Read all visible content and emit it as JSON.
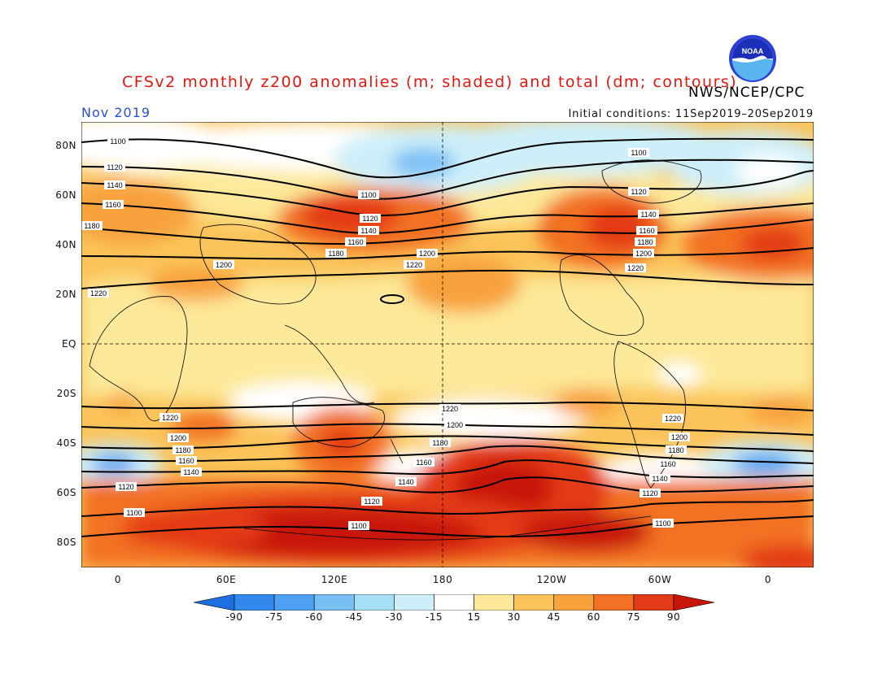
{
  "title": "CFSv2 monthly z200 anomalies (m; shaded) and total (dm; contours)",
  "org": "NWS/NCEP/CPC",
  "month": "Nov 2019",
  "initial_conditions": "Initial conditions: 11Sep2019–20Sep2019",
  "logo": {
    "text": "NOAA",
    "icon": "noaa-logo"
  },
  "lat_labels": [
    "80N",
    "60N",
    "40N",
    "20N",
    "EQ",
    "20S",
    "40S",
    "60S",
    "80S"
  ],
  "lon_labels": [
    "0",
    "60E",
    "120E",
    "180",
    "120W",
    "60W",
    "0"
  ],
  "colorbar": {
    "ticks": [
      "-90",
      "-75",
      "-60",
      "-45",
      "-30",
      "-15",
      "15",
      "30",
      "45",
      "60",
      "75",
      "90"
    ],
    "colors": [
      "#1e6fe0",
      "#3288ec",
      "#4ea0f2",
      "#78bff4",
      "#a6def6",
      "#ceeffa",
      "#ffffff",
      "#fde99a",
      "#fbc45a",
      "#f8a23c",
      "#f27124",
      "#e33b18",
      "#c81509"
    ]
  },
  "contour_labels": [
    "1100",
    "1120",
    "1140",
    "1160",
    "1180",
    "1200",
    "1220"
  ]
}
